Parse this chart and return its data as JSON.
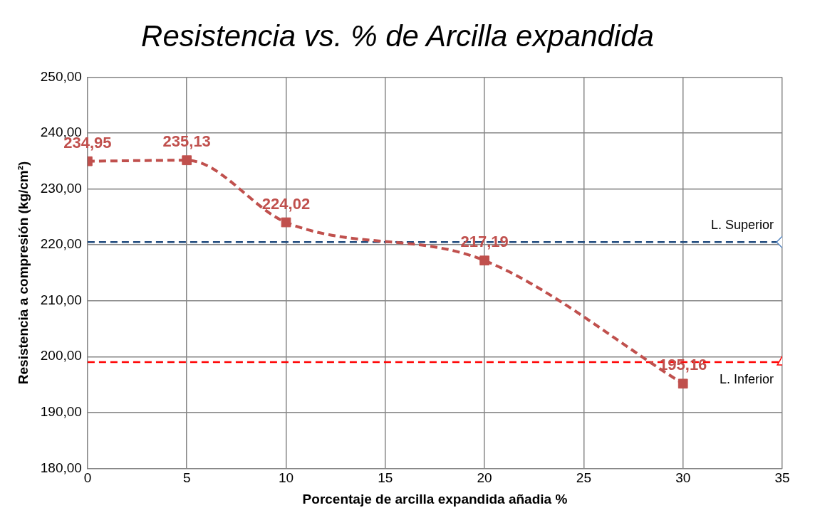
{
  "chart_data": {
    "type": "line",
    "title": "Resistencia vs. % de Arcilla expandida",
    "xlabel": "Porcentaje de arcilla expandida añadia %",
    "ylabel": "Resistencia a compresión (kg/cm²)",
    "xlim": [
      0,
      35
    ],
    "xticks": [
      0,
      5,
      10,
      15,
      20,
      25,
      30,
      35
    ],
    "ylim": [
      180,
      250
    ],
    "yticks": [
      {
        "value": 180,
        "label": "180,00"
      },
      {
        "value": 190,
        "label": "190,00"
      },
      {
        "value": 200,
        "label": "200,00"
      },
      {
        "value": 210,
        "label": "210,00"
      },
      {
        "value": 220,
        "label": "220,00"
      },
      {
        "value": 230,
        "label": "230,00"
      },
      {
        "value": 240,
        "label": "240,00"
      },
      {
        "value": 250,
        "label": "250,00"
      }
    ],
    "grid": true,
    "legend": false,
    "series": [
      {
        "color": "#c0504d",
        "x": [
          0,
          5,
          10,
          20,
          30
        ],
        "values": [
          234.95,
          235.13,
          224.02,
          217.19,
          195.16
        ],
        "value_labels": [
          "234,95",
          "235,13",
          "224,02",
          "217,19",
          "195,16"
        ],
        "marker": "square",
        "line_style": "dashed"
      },
      {
        "name": "L. Superior",
        "color": "#1f497d",
        "x": [
          0,
          35
        ],
        "values": [
          220.5,
          220.5
        ],
        "marker": "diamond",
        "line_style": "dashed"
      },
      {
        "name": "L. Inferior",
        "color": "#ff0000",
        "x": [
          0,
          35
        ],
        "values": [
          199,
          199
        ],
        "marker": "triangle",
        "line_style": "dashed"
      }
    ]
  }
}
